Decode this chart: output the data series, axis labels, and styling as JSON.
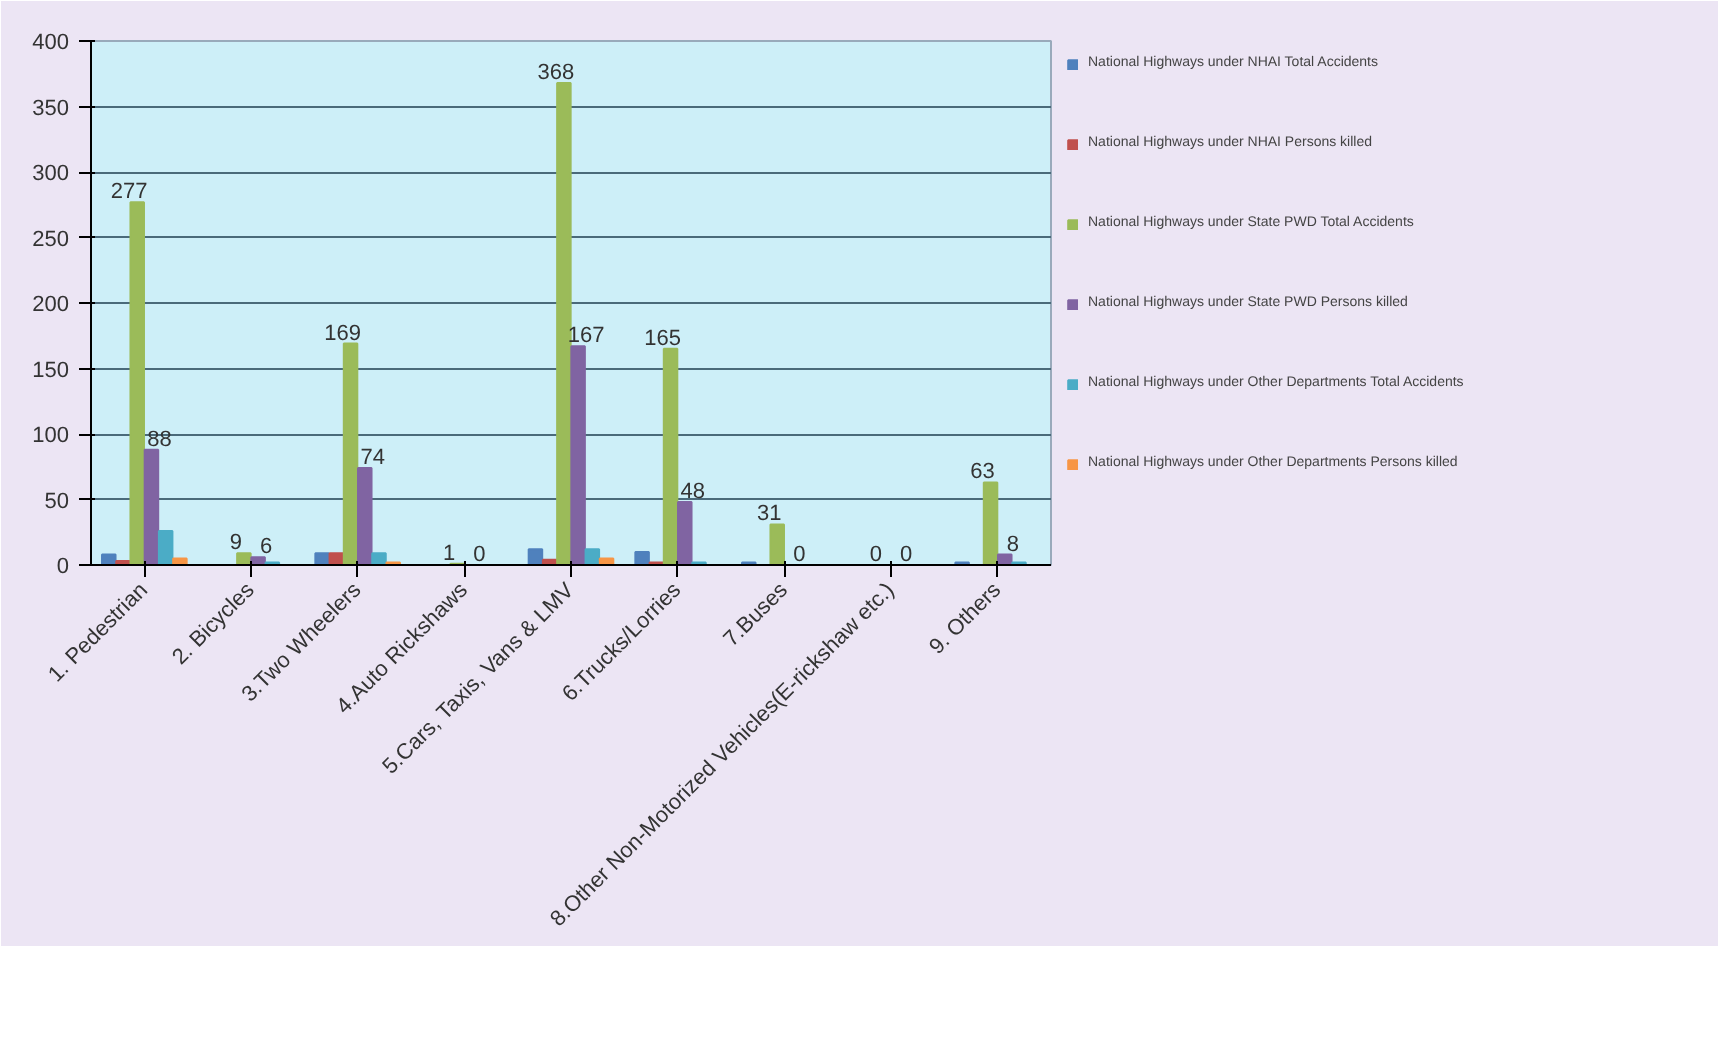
{
  "chart_data": {
    "type": "bar",
    "categories": [
      "1. Pedestrian",
      "2. Bicycles",
      "3.Two Wheelers",
      "4.Auto Rickshaws",
      "5.Cars, Taxis, Vans & LMV",
      "6.Trucks/Lorries",
      "7.Buses",
      "8.Other Non-Motorized Vehicles(E-rickshaw etc.)",
      "9. Others"
    ],
    "series": [
      {
        "name": "National Highways under NHAI Total Accidents",
        "color": "#4f81bd",
        "values": [
          8,
          0,
          9,
          0,
          12,
          10,
          2,
          0,
          2
        ]
      },
      {
        "name": "National Highways under NHAI Persons killed",
        "color": "#c0504d",
        "values": [
          3,
          0,
          9,
          0,
          4,
          2,
          null,
          0,
          null
        ]
      },
      {
        "name": "National Highways under State PWD Total Accidents",
        "color": "#9bbb59",
        "values": [
          277,
          9,
          169,
          1,
          368,
          165,
          31,
          0,
          63
        ],
        "value_labels": [
          "277",
          "9",
          "169",
          "1",
          "368",
          "165",
          "31",
          "0",
          "63"
        ]
      },
      {
        "name": "National Highways under State PWD Persons killed",
        "color": "#8064a2",
        "values": [
          88,
          6,
          74,
          0,
          167,
          48,
          0,
          0,
          8
        ],
        "value_labels": [
          "88",
          "6",
          "74",
          "0",
          "167",
          "48",
          "0",
          "0",
          "8"
        ]
      },
      {
        "name": "National Highways under Other Departments Total Accidents",
        "color": "#4bacc6",
        "values": [
          26,
          2,
          9,
          0,
          12,
          2,
          null,
          0,
          2
        ]
      },
      {
        "name": "National Highways under Other Departments Persons killed",
        "color": "#f79646",
        "values": [
          5,
          0,
          2,
          0,
          5,
          null,
          0,
          0,
          null
        ]
      }
    ],
    "ylim": [
      0,
      400
    ],
    "yticks": [
      0,
      50,
      100,
      150,
      200,
      250,
      300,
      350,
      400
    ],
    "grid": "y",
    "legend": "right"
  }
}
